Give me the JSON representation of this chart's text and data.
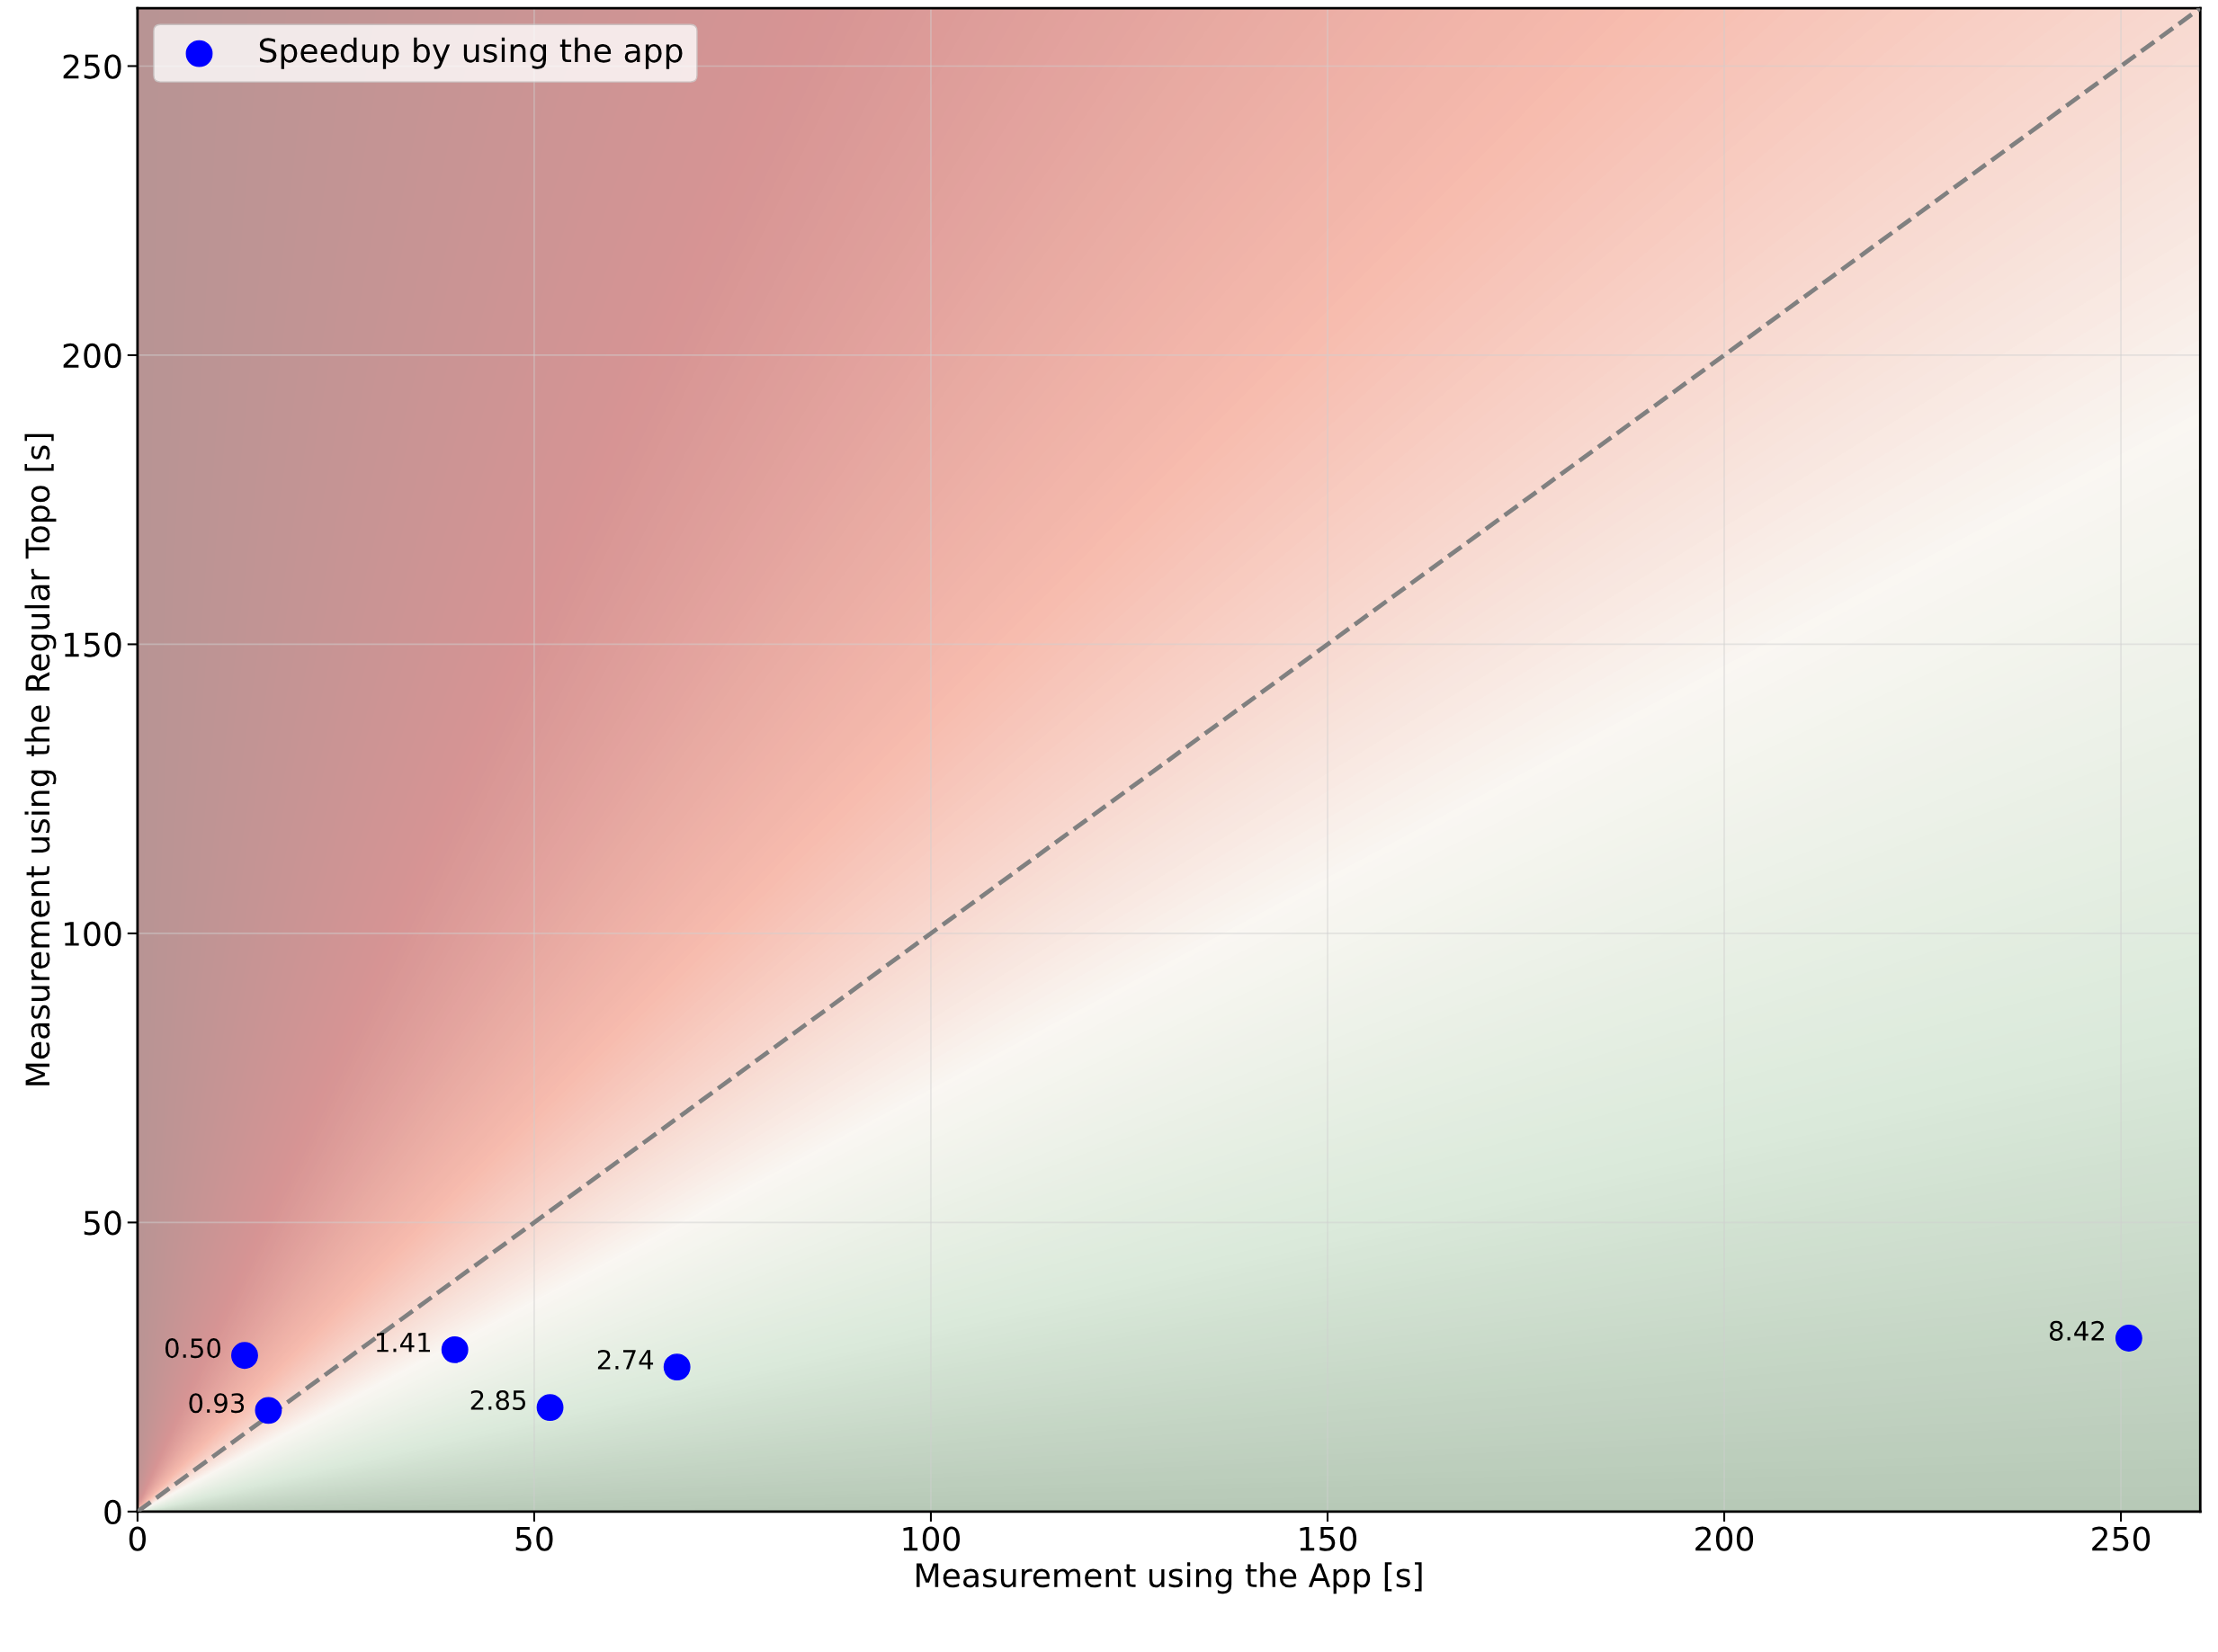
{
  "chart_data": {
    "type": "scatter",
    "xlabel": "Measurement using the App [s]",
    "ylabel": "Measurement using the Regular Topo [s]",
    "x": [
      13.5,
      16.5,
      40,
      52,
      68,
      251
    ],
    "series": [
      {
        "name": "Speedup by using the app",
        "color": "#0000ff",
        "marker": "circle",
        "values": [
          27,
          17.5,
          28,
          18,
          25,
          30
        ]
      },
      {
        "type": "line",
        "color": "#808080",
        "line_style": "dashed",
        "marker": "none",
        "x": [
          0,
          260
        ],
        "values": [
          0,
          260
        ]
      }
    ],
    "annotations": [
      {
        "text": "0.50",
        "x": 13.5,
        "y": 27
      },
      {
        "text": "0.93",
        "x": 16.5,
        "y": 17.5
      },
      {
        "text": "1.41",
        "x": 40,
        "y": 28
      },
      {
        "text": "2.85",
        "x": 52,
        "y": 18
      },
      {
        "text": "2.74",
        "x": 68,
        "y": 25
      },
      {
        "text": "8.42",
        "x": 251,
        "y": 30
      }
    ],
    "xlim": [
      0,
      260
    ],
    "ylim": [
      0,
      260
    ],
    "xticks": [
      0,
      50,
      100,
      150,
      200,
      250
    ],
    "yticks": [
      0,
      50,
      100,
      150,
      200,
      250
    ],
    "grid": true,
    "legend": "top left"
  }
}
